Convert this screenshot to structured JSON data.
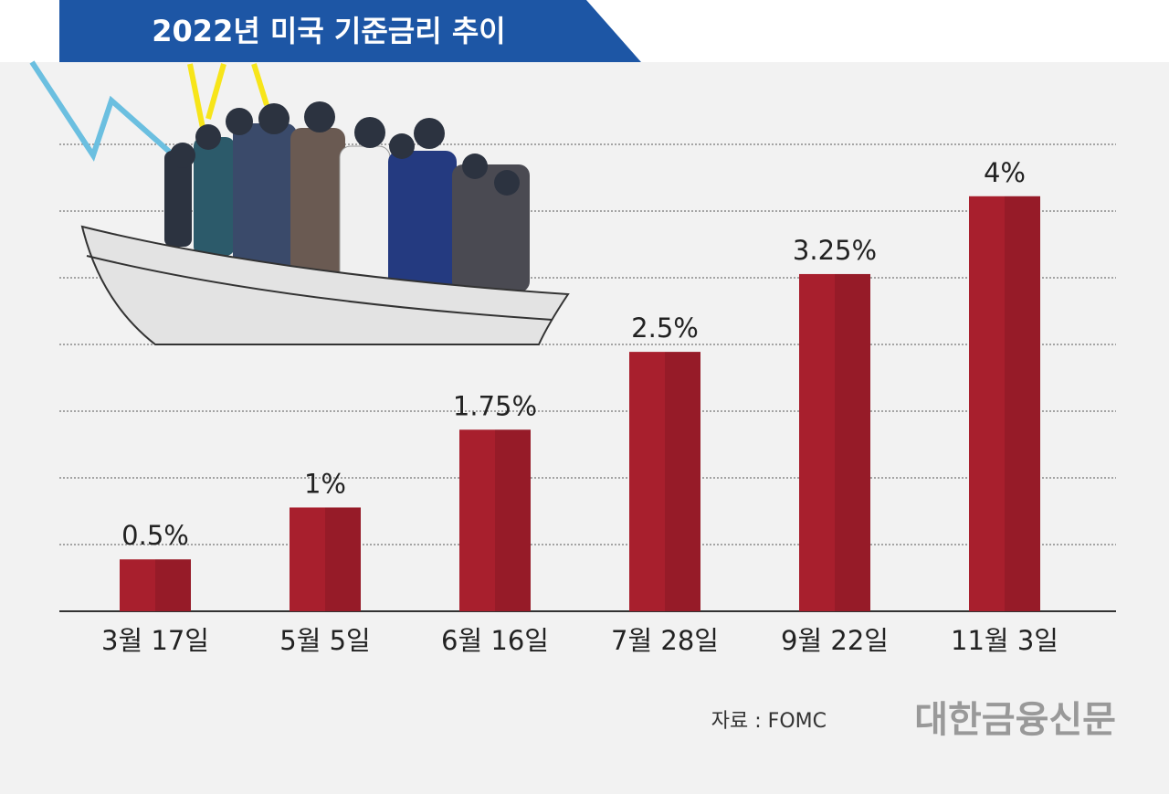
{
  "chart_data": {
    "type": "bar",
    "title": "2022년 미국 기준금리 추이",
    "categories": [
      "3월 17일",
      "5월 5일",
      "6월 16일",
      "7월 28일",
      "9월 22일",
      "11월 3일"
    ],
    "values": [
      0.5,
      1,
      1.75,
      2.5,
      3.25,
      4
    ],
    "value_labels": [
      "0.5%",
      "1%",
      "1.75%",
      "2.5%",
      "3.25%",
      "4%"
    ],
    "color": "#a81f2d",
    "ylim": [
      0,
      4.5
    ],
    "source": "자료 : FOMC",
    "publisher": "대한금융신문"
  }
}
